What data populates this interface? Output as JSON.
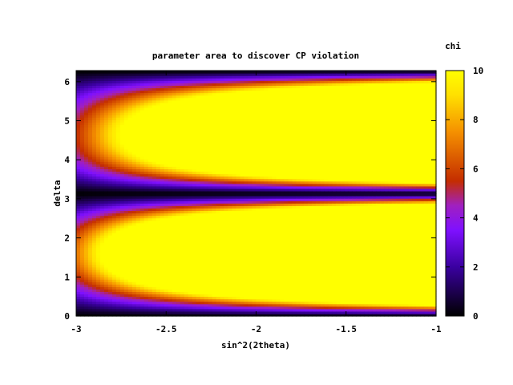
{
  "chart_data": {
    "type": "heatmap",
    "title": "parameter area to discover CP violation",
    "xlabel": "sin^2(2theta)",
    "ylabel": "delta",
    "xlim": [
      -3,
      -1
    ],
    "ylim": [
      0,
      6.2832
    ],
    "x_ticks": [
      -3,
      -2.5,
      -2,
      -1.5,
      -1
    ],
    "x_tick_labels": [
      "-3",
      "-2.5",
      "-2",
      "-1.5",
      "-1"
    ],
    "y_ticks": [
      0,
      1,
      2,
      3,
      4,
      5,
      6
    ],
    "y_tick_labels": [
      "0",
      "1",
      "2",
      "3",
      "4",
      "5",
      "6"
    ],
    "colorbar": {
      "label": "chi",
      "range": [
        0,
        10
      ],
      "ticks": [
        0,
        2,
        4,
        6,
        8,
        10
      ],
      "tick_labels": [
        "0",
        "2",
        "4",
        "6",
        "8",
        "10"
      ],
      "palette": [
        "#000000",
        "#7f00ff",
        "#c42d00",
        "#ffbe00",
        "#ffff00"
      ]
    },
    "description_of_field": "chi rises with sin^2(2theta) away from delta = 0, pi, 2pi; saturates at 10 for large mixing",
    "grid": false
  }
}
